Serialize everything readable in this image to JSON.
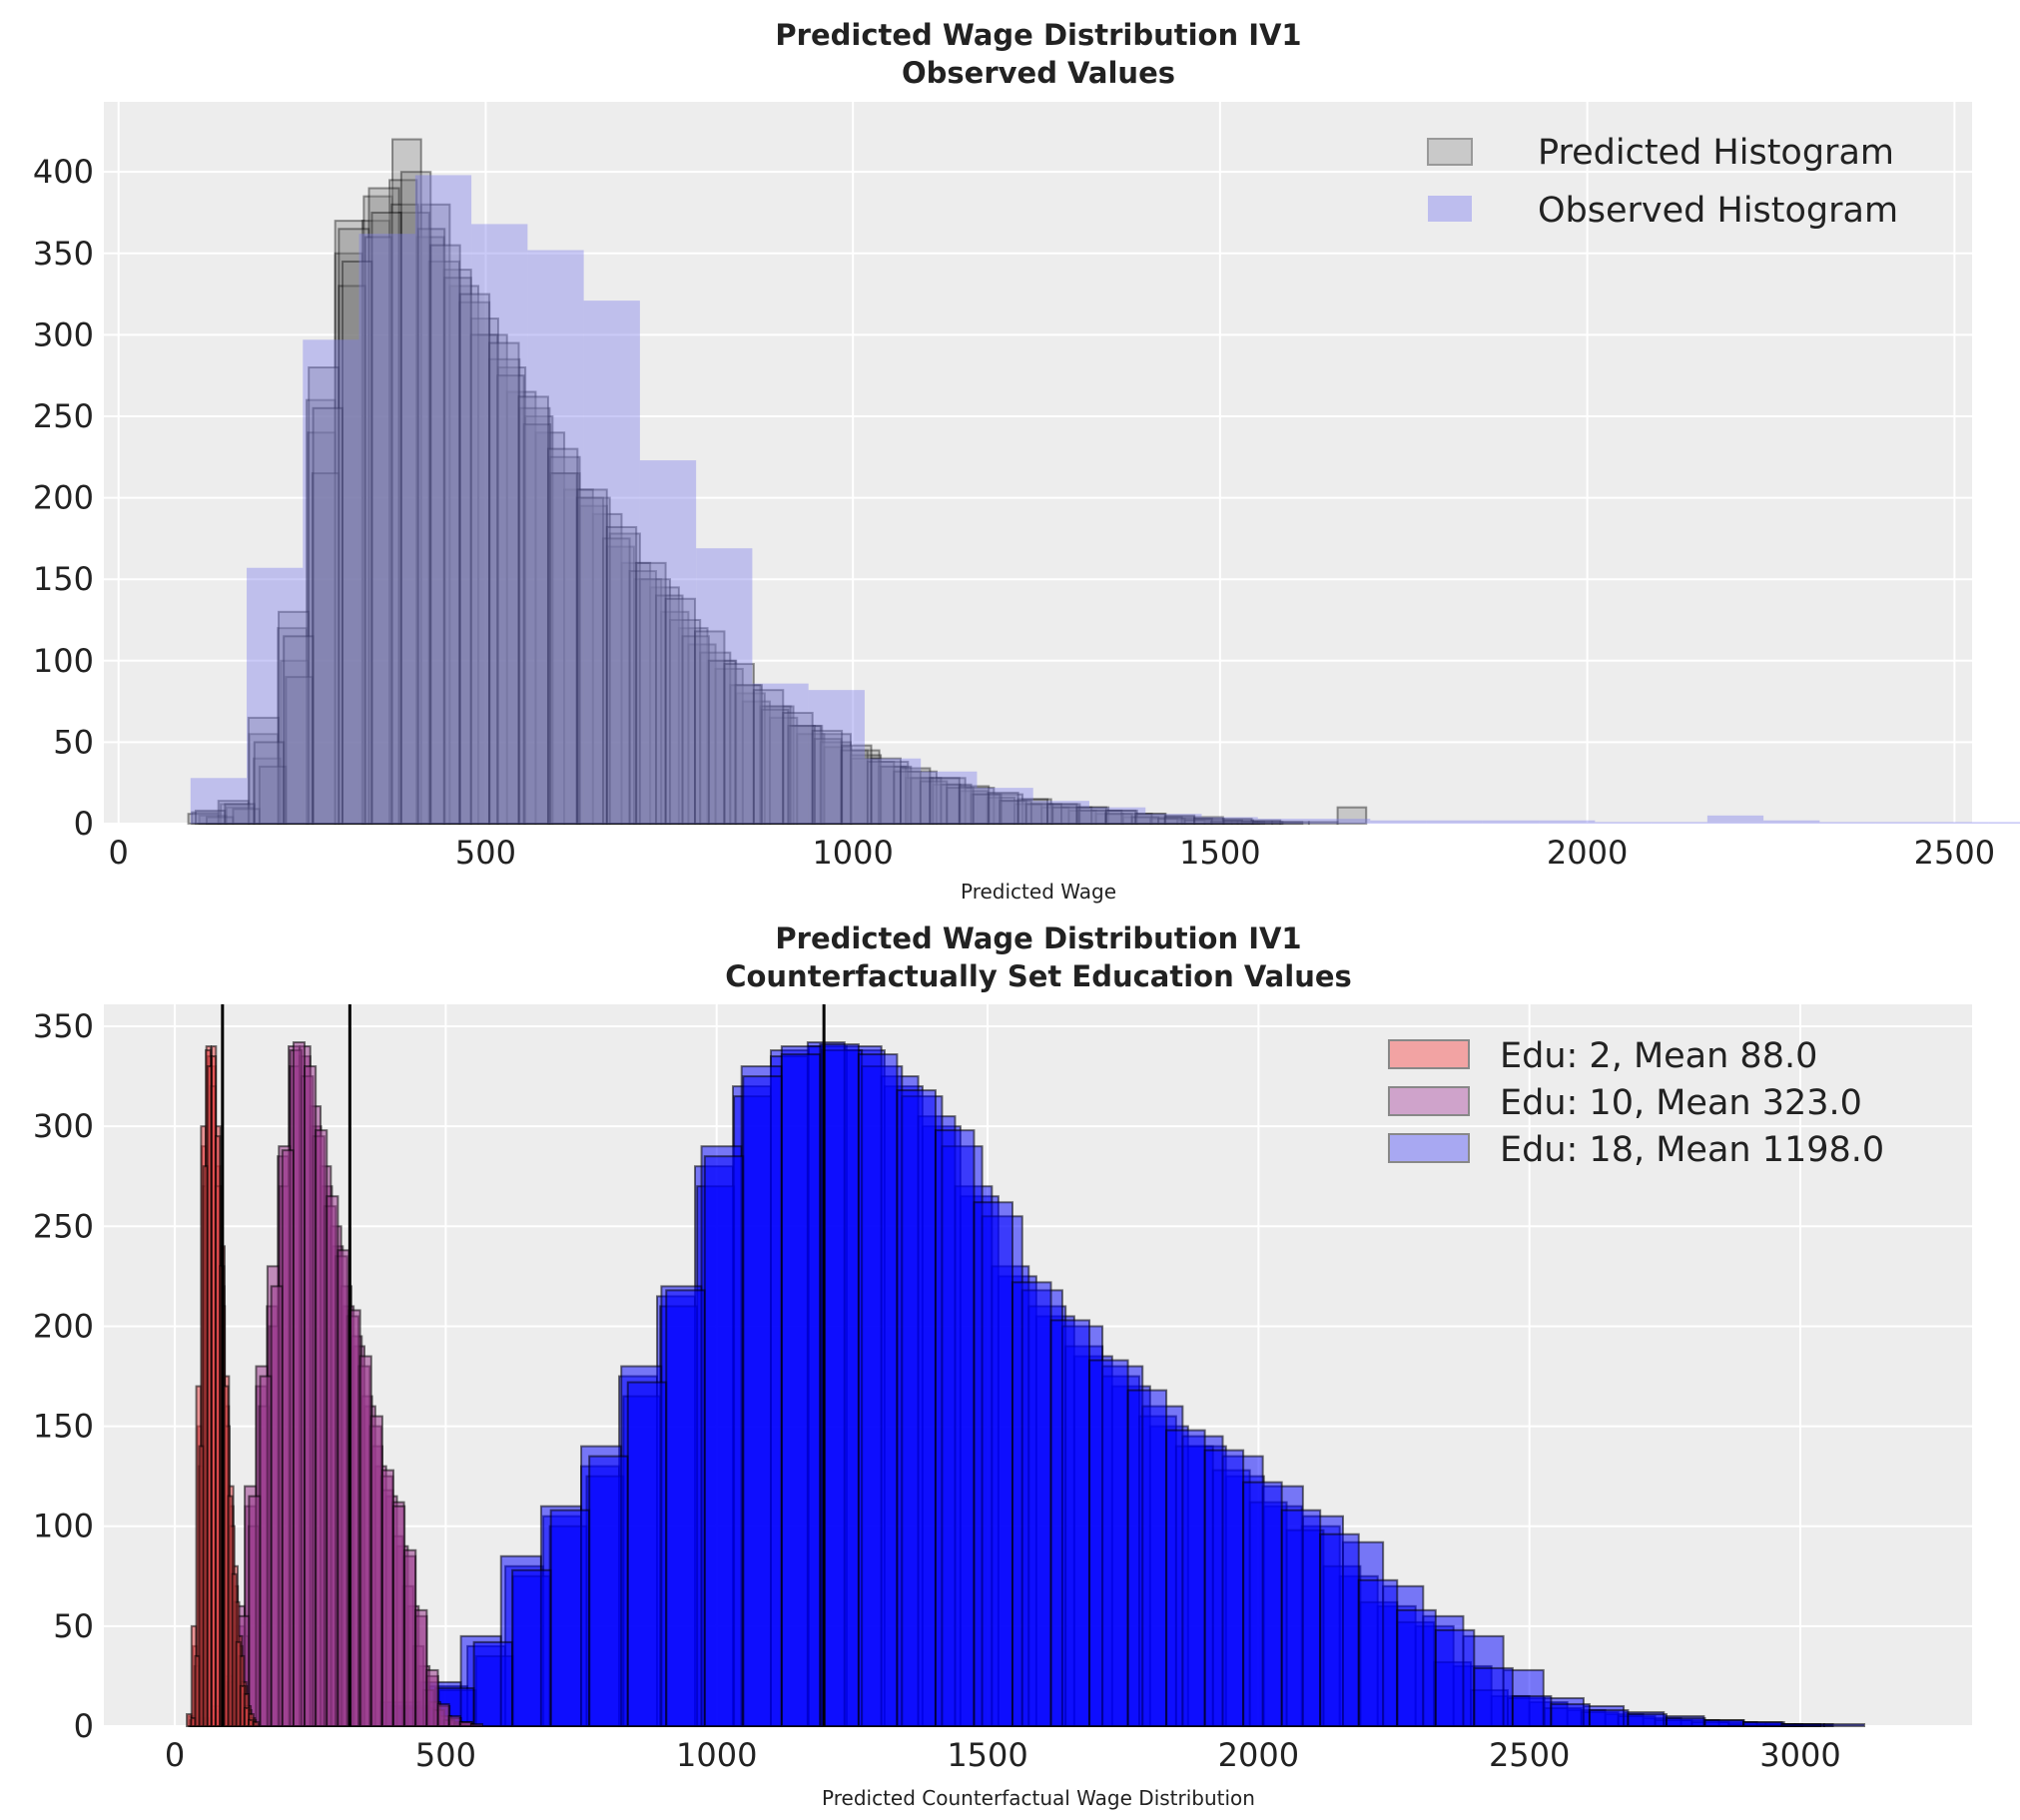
{
  "chart_data": [
    {
      "type": "bar",
      "title": [
        "Predicted Wage Distribution IV1",
        "Observed Values"
      ],
      "xlabel": "Predicted Wage",
      "ylabel": "",
      "xlim": [
        -20,
        2524
      ],
      "ylim": [
        0,
        443
      ],
      "xticks": [
        0,
        500,
        1000,
        1500,
        2000,
        2500
      ],
      "yticks": [
        0,
        50,
        100,
        150,
        200,
        250,
        300,
        350,
        400
      ],
      "grid": true,
      "legend_position": "top-right",
      "legend": [
        "Predicted Histogram",
        "Observed Histogram"
      ],
      "colors": {
        "predicted_fill": "#808080",
        "predicted_edge": "#000000",
        "observed_fill": "#7b7bea",
        "background": "#ededed"
      },
      "observed": {
        "start": 98,
        "bin_width": 76.5,
        "counts": [
          28,
          157,
          297,
          362,
          398,
          368,
          352,
          321,
          223,
          169,
          86,
          82,
          40,
          32,
          22,
          14,
          10,
          6,
          4,
          3,
          3,
          2,
          2,
          2,
          2,
          1,
          1,
          5,
          2,
          1,
          1,
          1,
          1,
          0,
          0,
          1,
          0
        ]
      },
      "predicted": [
        {
          "start": 100,
          "bin_width": 39,
          "counts": [
            7,
            12,
            55,
            120,
            260,
            370,
            385,
            420,
            380,
            330,
            300,
            265,
            240,
            205,
            190,
            160,
            145,
            120,
            100,
            80,
            72,
            60,
            55,
            45,
            38,
            32,
            28,
            22,
            18,
            15,
            12,
            10,
            8,
            6,
            5,
            4,
            3,
            2,
            1,
            1,
            10
          ]
        },
        {
          "start": 110,
          "bin_width": 37,
          "counts": [
            5,
            10,
            40,
            100,
            240,
            350,
            370,
            395,
            360,
            340,
            310,
            280,
            250,
            215,
            195,
            170,
            150,
            130,
            110,
            95,
            75,
            65,
            55,
            47,
            40,
            35,
            28,
            24,
            20,
            16,
            12,
            10,
            8,
            6,
            4,
            3,
            2,
            1,
            1
          ]
        },
        {
          "start": 95,
          "bin_width": 41,
          "counts": [
            6,
            14,
            65,
            130,
            280,
            365,
            390,
            375,
            345,
            320,
            285,
            255,
            225,
            200,
            178,
            150,
            125,
            105,
            85,
            72,
            60,
            50,
            42,
            35,
            28,
            24,
            18,
            14,
            12,
            10,
            8,
            6,
            4,
            3,
            2,
            1,
            1
          ]
        },
        {
          "start": 120,
          "bin_width": 36,
          "counts": [
            4,
            9,
            35,
            90,
            215,
            330,
            360,
            380,
            365,
            335,
            300,
            275,
            245,
            215,
            200,
            175,
            155,
            140,
            115,
            100,
            85,
            70,
            60,
            52,
            45,
            38,
            32,
            26,
            22,
            18,
            14,
            12,
            10,
            8,
            6,
            4,
            3,
            2,
            1,
            1
          ]
        },
        {
          "start": 105,
          "bin_width": 40,
          "counts": [
            8,
            12,
            50,
            115,
            255,
            345,
            375,
            400,
            355,
            325,
            295,
            262,
            230,
            205,
            182,
            160,
            138,
            118,
            98,
            82,
            68,
            57,
            48,
            40,
            34,
            28,
            23,
            19,
            15,
            12,
            10,
            8,
            6,
            4,
            3,
            2,
            1
          ]
        }
      ]
    },
    {
      "type": "bar",
      "title": [
        "Predicted Wage Distribution IV1",
        "Counterfactually Set Education Values"
      ],
      "xlabel": "Predicted Counterfactual Wage Distribution",
      "ylabel": "",
      "xlim": [
        -131,
        3317
      ],
      "ylim": [
        0,
        361
      ],
      "xticks": [
        0,
        500,
        1000,
        1500,
        2000,
        2500,
        3000
      ],
      "yticks": [
        0,
        50,
        100,
        150,
        200,
        250,
        300,
        350
      ],
      "grid": true,
      "legend_position": "top-right",
      "legend": [
        "Edu: 2, Mean 88.0",
        "Edu: 10, Mean 323.0",
        "Edu: 18, Mean 1198.0"
      ],
      "mean_lines": [
        88.0,
        323.0,
        1198.0
      ],
      "groups": [
        {
          "label": "Edu: 2, Mean 88.0",
          "color": "#e8484a",
          "series": [
            {
              "start": 25,
              "bin_width": 8.3,
              "counts": [
                5,
                40,
                150,
                290,
                340,
                330,
                280,
                220,
                160,
                110,
                70,
                40,
                20,
                8,
                3
              ]
            },
            {
              "start": 28,
              "bin_width": 8,
              "counts": [
                3,
                30,
                130,
                270,
                335,
                340,
                300,
                240,
                175,
                120,
                80,
                45,
                22,
                10,
                4
              ]
            },
            {
              "start": 22,
              "bin_width": 8.8,
              "counts": [
                6,
                50,
                170,
                300,
                338,
                320,
                270,
                210,
                150,
                100,
                62,
                35,
                16,
                6,
                2
              ]
            },
            {
              "start": 30,
              "bin_width": 7.6,
              "counts": [
                4,
                35,
                140,
                280,
                330,
                335,
                295,
                230,
                170,
                115,
                76,
                42,
                20,
                9,
                3
              ]
            }
          ]
        },
        {
          "label": "Edu: 10, Mean 323.0",
          "color": "#9a3a8e",
          "series": [
            {
              "start": 50,
              "bin_width": 20,
              "counts": [
                3,
                8,
                20,
                50,
                110,
                170,
                210,
                285,
                340,
                335,
                300,
                270,
                240,
                210,
                190,
                160,
                130,
                115,
                90,
                60,
                30,
                12,
                5,
                2,
                1
              ]
            },
            {
              "start": 60,
              "bin_width": 19,
              "counts": [
                2,
                6,
                18,
                45,
                100,
                160,
                200,
                270,
                330,
                340,
                310,
                280,
                250,
                220,
                195,
                165,
                140,
                118,
                95,
                70,
                40,
                18,
                8,
                3,
                1
              ]
            },
            {
              "start": 45,
              "bin_width": 21,
              "counts": [
                4,
                10,
                25,
                60,
                120,
                180,
                230,
                290,
                338,
                325,
                295,
                260,
                235,
                205,
                180,
                150,
                125,
                112,
                85,
                55,
                25,
                10,
                4,
                2
              ]
            },
            {
              "start": 55,
              "bin_width": 20.5,
              "counts": [
                3,
                7,
                22,
                55,
                115,
                175,
                220,
                288,
                342,
                330,
                298,
                265,
                238,
                208,
                185,
                155,
                128,
                110,
                88,
                58,
                28,
                11,
                5,
                2,
                1
              ]
            }
          ]
        },
        {
          "label": "Edu: 18, Mean 1198.0",
          "color": "#0000ff",
          "series": [
            {
              "start": 400,
              "bin_width": 70,
              "counts": [
                10,
                20,
                40,
                80,
                105,
                130,
                175,
                215,
                280,
                320,
                338,
                340,
                338,
                320,
                300,
                265,
                225,
                205,
                185,
                170,
                150,
                140,
                125,
                110,
                100,
                75,
                60,
                50,
                30,
                15,
                12,
                8,
                6,
                4,
                3,
                2,
                1,
                1
              ]
            },
            {
              "start": 420,
              "bin_width": 68,
              "counts": [
                8,
                18,
                35,
                75,
                100,
                125,
                165,
                210,
                270,
                315,
                335,
                342,
                340,
                325,
                305,
                270,
                230,
                210,
                190,
                175,
                155,
                140,
                128,
                112,
                98,
                80,
                62,
                52,
                32,
                18,
                14,
                9,
                7,
                5,
                3,
                2,
                1,
                1
              ]
            },
            {
              "start": 380,
              "bin_width": 74,
              "counts": [
                12,
                22,
                45,
                85,
                110,
                140,
                180,
                220,
                290,
                330,
                340,
                338,
                330,
                315,
                290,
                255,
                218,
                200,
                180,
                160,
                145,
                135,
                120,
                105,
                92,
                70,
                55,
                45,
                28,
                14,
                10,
                7,
                5,
                3,
                2,
                1,
                1
              ]
            },
            {
              "start": 410,
              "bin_width": 71,
              "counts": [
                9,
                19,
                42,
                78,
                108,
                135,
                172,
                218,
                285,
                325,
                336,
                341,
                336,
                318,
                298,
                262,
                222,
                203,
                183,
                168,
                148,
                138,
                122,
                108,
                96,
                73,
                58,
                48,
                29,
                15,
                11,
                8,
                6,
                4,
                3,
                2,
                1
              ]
            }
          ]
        }
      ]
    }
  ]
}
